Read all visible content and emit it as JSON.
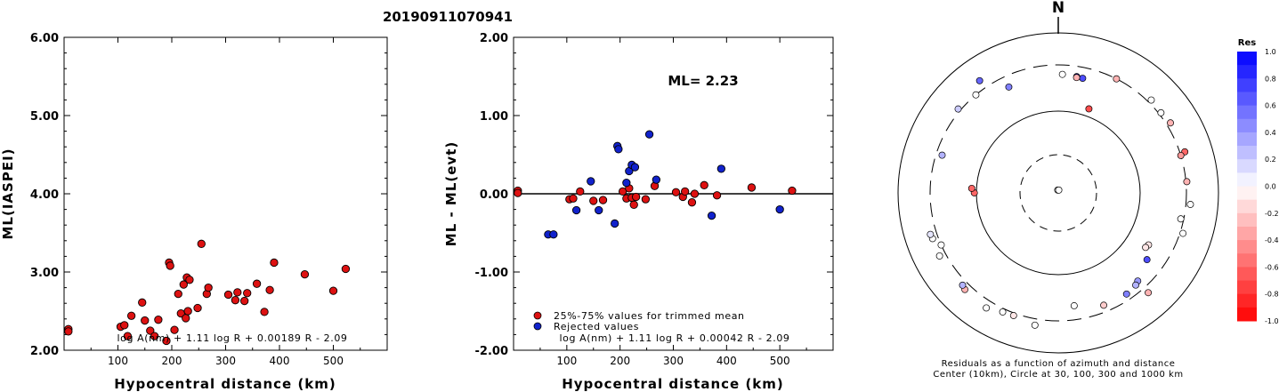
{
  "title": "20190911070941",
  "chart_data": [
    {
      "type": "scatter",
      "xlabel": "Hypocentral distance (km)",
      "ylabel": "ML(IASPEI)",
      "xlim": [
        0,
        600
      ],
      "ylim": [
        2.0,
        6.0
      ],
      "xticks": [
        "100",
        "200",
        "300",
        "400",
        "500"
      ],
      "xtick_values": [
        100,
        200,
        300,
        400,
        500
      ],
      "yticks": [
        "2.00",
        "3.00",
        "4.00",
        "5.00",
        "6.00"
      ],
      "ytick_values": [
        2,
        3,
        4,
        5,
        6
      ],
      "formula": "log A(nm) + 1.11 log R + 0.00189 R - 2.09",
      "points": [
        [
          8,
          2.27
        ],
        [
          8,
          2.24
        ],
        [
          105,
          2.3
        ],
        [
          112,
          2.32
        ],
        [
          118,
          2.18
        ],
        [
          125,
          2.44
        ],
        [
          145,
          2.61
        ],
        [
          150,
          2.38
        ],
        [
          160,
          2.25
        ],
        [
          168,
          2.18
        ],
        [
          175,
          2.39
        ],
        [
          190,
          2.12
        ],
        [
          195,
          3.12
        ],
        [
          197,
          3.08
        ],
        [
          205,
          2.26
        ],
        [
          212,
          2.72
        ],
        [
          217,
          2.47
        ],
        [
          222,
          2.84
        ],
        [
          226,
          2.41
        ],
        [
          228,
          2.93
        ],
        [
          230,
          2.5
        ],
        [
          233,
          2.9
        ],
        [
          248,
          2.54
        ],
        [
          255,
          3.36
        ],
        [
          265,
          2.72
        ],
        [
          268,
          2.8
        ],
        [
          305,
          2.71
        ],
        [
          318,
          2.64
        ],
        [
          322,
          2.74
        ],
        [
          335,
          2.63
        ],
        [
          340,
          2.73
        ],
        [
          358,
          2.85
        ],
        [
          372,
          2.49
        ],
        [
          382,
          2.77
        ],
        [
          390,
          3.12
        ],
        [
          447,
          2.97
        ],
        [
          500,
          2.76
        ],
        [
          523,
          3.04
        ]
      ]
    },
    {
      "type": "scatter",
      "xlabel": "Hypocentral distance (km)",
      "ylabel": "ML - ML(evt)",
      "xlim": [
        0,
        600
      ],
      "ylim": [
        -2.0,
        2.0
      ],
      "xticks": [
        "100",
        "200",
        "300",
        "400",
        "500"
      ],
      "xtick_values": [
        100,
        200,
        300,
        400,
        500
      ],
      "yticks": [
        "-2.00",
        "-1.00",
        "0.00",
        "1.00",
        "2.00"
      ],
      "ytick_values": [
        -2,
        -1,
        0,
        1,
        2
      ],
      "reference_line": 0,
      "annotation": "ML= 2.23",
      "formula": "log A(nm) + 1.11 log R + 0.00042 R - 2.09",
      "legend": [
        {
          "label": "25%-75% values for trimmed mean",
          "color": "#dd1111"
        },
        {
          "label": "Rejected values",
          "color": "#1122cc"
        }
      ],
      "series": [
        {
          "name": "25%-75% values for trimmed mean",
          "color": "#dd1111",
          "points": [
            [
              8,
              0.04
            ],
            [
              8,
              0.01
            ],
            [
              105,
              -0.07
            ],
            [
              112,
              -0.06
            ],
            [
              125,
              0.03
            ],
            [
              150,
              -0.09
            ],
            [
              168,
              -0.08
            ],
            [
              205,
              0.03
            ],
            [
              212,
              -0.06
            ],
            [
              217,
              0.07
            ],
            [
              222,
              -0.05
            ],
            [
              226,
              -0.14
            ],
            [
              230,
              -0.04
            ],
            [
              248,
              -0.07
            ],
            [
              265,
              0.1
            ],
            [
              305,
              0.02
            ],
            [
              318,
              -0.04
            ],
            [
              322,
              0.03
            ],
            [
              335,
              -0.11
            ],
            [
              340,
              0.0
            ],
            [
              358,
              0.11
            ],
            [
              382,
              -0.02
            ],
            [
              447,
              0.08
            ],
            [
              523,
              0.04
            ]
          ]
        },
        {
          "name": "Rejected values",
          "color": "#1122cc",
          "points": [
            [
              65,
              -0.52
            ],
            [
              75,
              -0.52
            ],
            [
              118,
              -0.21
            ],
            [
              145,
              0.16
            ],
            [
              160,
              -0.21
            ],
            [
              190,
              -0.38
            ],
            [
              195,
              0.61
            ],
            [
              197,
              0.57
            ],
            [
              212,
              0.14
            ],
            [
              217,
              0.29
            ],
            [
              222,
              0.37
            ],
            [
              228,
              0.34
            ],
            [
              255,
              0.76
            ],
            [
              268,
              0.18
            ],
            [
              372,
              -0.28
            ],
            [
              390,
              0.32
            ],
            [
              500,
              -0.2
            ]
          ]
        }
      ]
    },
    {
      "type": "scatter",
      "subtype": "polar residual plot",
      "north_label": "N",
      "caption_line1": "Residuals as a function of azimuth and distance",
      "caption_line2": "Center (10km), Circle at 30, 100, 300 and 1000 km",
      "colorbar_title": "Res",
      "colorbar_labels": [
        "1.0",
        "0.8",
        "0.6",
        "0.4",
        "0.2",
        "0.0",
        "-0.2",
        "-0.4",
        "-0.6",
        "-0.8",
        "-1.0"
      ],
      "colorbar_values": [
        1.0,
        0.8,
        0.6,
        0.4,
        0.2,
        0.0,
        -0.2,
        -0.4,
        -0.6,
        -0.8,
        -1.0
      ],
      "stations": [
        {
          "azimuth": 350,
          "distance_km": 8,
          "residual": 0.0
        },
        {
          "azimuth": 10,
          "distance_km": 8,
          "residual": 0.0
        },
        {
          "azimuth": 270,
          "distance_km": 105,
          "residual": -0.6
        },
        {
          "azimuth": 273,
          "distance_km": 112,
          "residual": -0.6
        },
        {
          "azimuth": 20,
          "distance_km": 120,
          "residual": -0.7
        },
        {
          "azimuth": 335,
          "distance_km": 230,
          "residual": 0.5
        },
        {
          "azimuth": 320,
          "distance_km": 300,
          "residual": 0.0
        },
        {
          "azimuth": 310,
          "distance_km": 330,
          "residual": 0.2
        },
        {
          "azimuth": 325,
          "distance_km": 420,
          "residual": 0.6
        },
        {
          "azimuth": 288,
          "distance_km": 260,
          "residual": 0.3
        },
        {
          "azimuth": 2,
          "distance_km": 240,
          "residual": 0.0
        },
        {
          "azimuth": 9,
          "distance_km": 235,
          "residual": 0.9
        },
        {
          "azimuth": 12,
          "distance_km": 232,
          "residual": 0.7
        },
        {
          "azimuth": 9,
          "distance_km": 230,
          "residual": -0.3
        },
        {
          "azimuth": 27,
          "distance_km": 300,
          "residual": -0.3
        },
        {
          "azimuth": 45,
          "distance_km": 340,
          "residual": 0.0
        },
        {
          "azimuth": 52,
          "distance_km": 325,
          "residual": 0.0
        },
        {
          "azimuth": 58,
          "distance_km": 350,
          "residual": -0.3
        },
        {
          "azimuth": 72,
          "distance_km": 360,
          "residual": -0.6
        },
        {
          "azimuth": 73,
          "distance_km": 300,
          "residual": -0.4
        },
        {
          "azimuth": 85,
          "distance_km": 310,
          "residual": -0.3
        },
        {
          "azimuth": 95,
          "distance_km": 355,
          "residual": 0.0
        },
        {
          "azimuth": 102,
          "distance_km": 280,
          "residual": 0.0
        },
        {
          "azimuth": 108,
          "distance_km": 335,
          "residual": 0.0
        },
        {
          "azimuth": 120,
          "distance_km": 170,
          "residual": -0.1
        },
        {
          "azimuth": 122,
          "distance_km": 165,
          "residual": -0.1
        },
        {
          "azimuth": 127,
          "distance_km": 200,
          "residual": 0.7
        },
        {
          "azimuth": 138,
          "distance_km": 240,
          "residual": 0.4
        },
        {
          "azimuth": 140,
          "distance_km": 250,
          "residual": 0.3
        },
        {
          "azimuth": 146,
          "distance_km": 260,
          "residual": 0.5
        },
        {
          "azimuth": 138,
          "distance_km": 380,
          "residual": -0.3
        },
        {
          "azimuth": 158,
          "distance_km": 255,
          "residual": -0.2
        },
        {
          "azimuth": 172,
          "distance_km": 215,
          "residual": 0.0
        },
        {
          "azimuth": 200,
          "distance_km": 330,
          "residual": -0.1
        },
        {
          "azimuth": 205,
          "distance_km": 340,
          "residual": 0.0
        },
        {
          "azimuth": 190,
          "distance_km": 380,
          "residual": 0.0
        },
        {
          "azimuth": 212,
          "distance_km": 400,
          "residual": 0.0
        },
        {
          "azimuth": 224,
          "distance_km": 380,
          "residual": -0.3
        },
        {
          "azimuth": 226,
          "distance_km": 360,
          "residual": 0.3
        },
        {
          "azimuth": 246,
          "distance_km": 300,
          "residual": 0.0
        },
        {
          "azimuth": 250,
          "distance_km": 370,
          "residual": 0.0
        },
        {
          "azimuth": 252,
          "distance_km": 380,
          "residual": 0.1
        },
        {
          "azimuth": 242,
          "distance_km": 380,
          "residual": 0.0
        }
      ]
    }
  ]
}
